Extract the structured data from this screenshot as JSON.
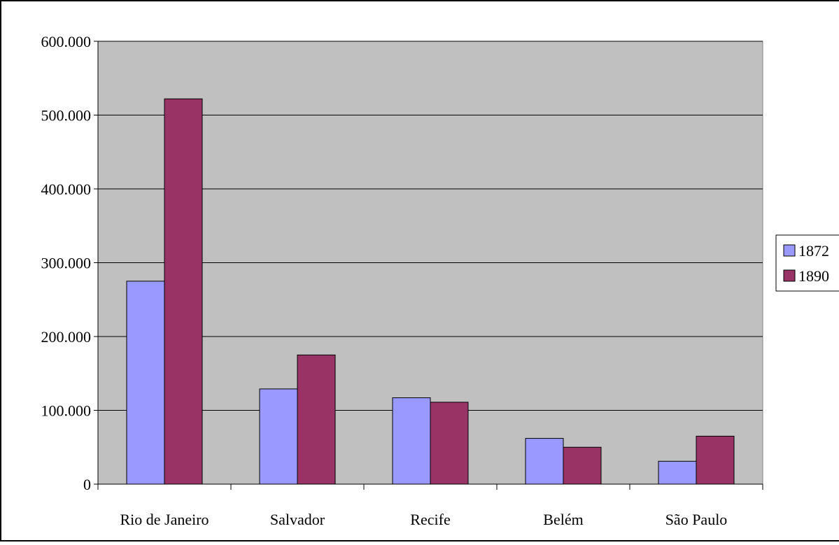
{
  "chart_data": {
    "type": "bar",
    "title": "",
    "xlabel": "",
    "ylabel": "",
    "categories": [
      "Rio de Janeiro",
      "Salvador",
      "Recife",
      "Belém",
      "São Paulo"
    ],
    "series": [
      {
        "name": "1872",
        "values": [
          275000,
          129000,
          117000,
          62000,
          31000
        ],
        "color": "#9999ff"
      },
      {
        "name": "1890",
        "values": [
          522000,
          175000,
          111000,
          50000,
          65000
        ],
        "color": "#993366"
      }
    ],
    "ylim": [
      0,
      600000
    ],
    "yticks": [
      {
        "value": 0,
        "label": "0"
      },
      {
        "value": 100000,
        "label": "100.000"
      },
      {
        "value": 200000,
        "label": "200.000"
      },
      {
        "value": 300000,
        "label": "300.000"
      },
      {
        "value": 400000,
        "label": "400.000"
      },
      {
        "value": 500000,
        "label": "500.000"
      },
      {
        "value": 600000,
        "label": "600.000"
      }
    ],
    "grid": true,
    "legend_position": "right",
    "plot_background": "#c0c0c0",
    "gridline_color": "#000000"
  }
}
